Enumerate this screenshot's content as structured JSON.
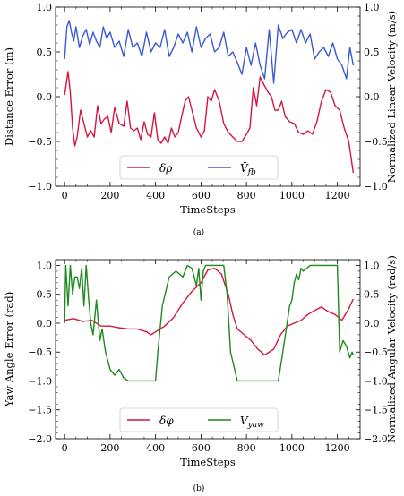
{
  "chart_data": [
    {
      "type": "line",
      "caption": "(a)",
      "xlabel": "TimeSteps",
      "ylabel_left": "Distance Error (m)",
      "ylabel_right": "Normalized Linear Velocity (m/s)",
      "xlim": [
        -40,
        1300
      ],
      "ylim": [
        -1.0,
        1.0
      ],
      "xticks": [
        "0",
        "200",
        "400",
        "600",
        "800",
        "1000",
        "1200"
      ],
      "yticks_left": [
        "−1.0",
        "−0.5",
        "0.0",
        "0.5",
        "1.0"
      ],
      "yticks_right": [
        "−1.0",
        "−0.5",
        "0.0",
        "0.5",
        "1.0"
      ],
      "legend_position": "lower-center",
      "series": [
        {
          "name": "δρ",
          "color": "#d6163f",
          "x": [
            0,
            15,
            25,
            35,
            45,
            55,
            70,
            85,
            100,
            115,
            130,
            145,
            160,
            175,
            190,
            205,
            220,
            240,
            260,
            275,
            290,
            305,
            320,
            335,
            350,
            365,
            380,
            395,
            410,
            425,
            440,
            455,
            470,
            485,
            500,
            515,
            530,
            545,
            560,
            580,
            600,
            615,
            630,
            645,
            660,
            680,
            700,
            720,
            740,
            760,
            780,
            800,
            815,
            830,
            845,
            860,
            880,
            895,
            910,
            925,
            940,
            955,
            970,
            990,
            1010,
            1030,
            1050,
            1070,
            1090,
            1110,
            1130,
            1150,
            1170,
            1190,
            1210,
            1230,
            1250,
            1270
          ],
          "y": [
            0.02,
            0.28,
            0.05,
            -0.35,
            -0.55,
            -0.45,
            -0.15,
            -0.3,
            -0.45,
            -0.38,
            -0.45,
            -0.1,
            -0.3,
            -0.25,
            -0.22,
            -0.4,
            -0.12,
            -0.3,
            -0.33,
            -0.05,
            -0.35,
            -0.38,
            -0.35,
            -0.48,
            -0.28,
            -0.42,
            -0.45,
            -0.18,
            -0.48,
            -0.52,
            -0.45,
            -0.52,
            -0.35,
            -0.45,
            -0.4,
            -0.22,
            -0.05,
            0.0,
            -0.15,
            -0.35,
            -0.45,
            -0.38,
            0.0,
            -0.05,
            0.08,
            -0.05,
            -0.3,
            -0.4,
            -0.45,
            -0.5,
            -0.5,
            -0.42,
            -0.35,
            0.1,
            -0.1,
            0.22,
            0.12,
            0.05,
            0.0,
            -0.15,
            -0.15,
            -0.05,
            -0.22,
            -0.28,
            -0.3,
            -0.4,
            -0.42,
            -0.38,
            -0.42,
            -0.28,
            -0.05,
            0.08,
            0.05,
            -0.1,
            -0.15,
            -0.35,
            -0.5,
            -0.85
          ]
        },
        {
          "name": "V̄fb",
          "color": "#3a5bd0",
          "x": [
            0,
            10,
            20,
            30,
            40,
            50,
            65,
            80,
            95,
            110,
            125,
            140,
            155,
            170,
            185,
            200,
            220,
            240,
            260,
            280,
            300,
            320,
            340,
            360,
            380,
            400,
            420,
            440,
            460,
            480,
            500,
            520,
            540,
            560,
            580,
            600,
            620,
            640,
            660,
            680,
            700,
            720,
            740,
            760,
            780,
            800,
            820,
            840,
            860,
            880,
            900,
            920,
            940,
            960,
            980,
            1000,
            1020,
            1040,
            1060,
            1080,
            1100,
            1120,
            1140,
            1160,
            1180,
            1200,
            1220,
            1240,
            1255,
            1270
          ],
          "y": [
            0.42,
            0.78,
            0.85,
            0.72,
            0.62,
            0.78,
            0.55,
            0.68,
            0.75,
            0.58,
            0.72,
            0.62,
            0.55,
            0.78,
            0.65,
            0.72,
            0.55,
            0.62,
            0.45,
            0.75,
            0.55,
            0.6,
            0.45,
            0.72,
            0.5,
            0.6,
            0.55,
            0.75,
            0.45,
            0.55,
            0.7,
            0.6,
            0.72,
            0.5,
            0.78,
            0.55,
            0.65,
            0.7,
            0.5,
            0.55,
            0.72,
            0.45,
            0.5,
            0.38,
            0.25,
            0.55,
            0.35,
            0.6,
            0.35,
            0.2,
            0.75,
            0.15,
            0.8,
            0.65,
            0.72,
            0.75,
            0.6,
            0.75,
            0.6,
            0.7,
            0.42,
            0.5,
            0.55,
            0.45,
            0.6,
            0.42,
            0.35,
            0.2,
            0.55,
            0.35
          ]
        }
      ]
    },
    {
      "type": "line",
      "caption": "(b)",
      "xlabel": "TimeSteps",
      "ylabel_left": "Yaw Angle Error (rad)",
      "ylabel_right": "Normalized Angular Velocity (rad/s)",
      "xlim": [
        -40,
        1300
      ],
      "ylim": [
        -2.0,
        1.1
      ],
      "xticks": [
        "0",
        "200",
        "400",
        "600",
        "800",
        "1000",
        "1200"
      ],
      "yticks_left": [
        "−2.0",
        "−1.5",
        "−1.0",
        "−0.5",
        "0.0",
        "0.5",
        "1.0"
      ],
      "yticks_right": [
        "−2.0",
        "−1.5",
        "−1.0",
        "−0.5",
        "0.0",
        "0.5",
        "1.0"
      ],
      "legend_position": "lower-center",
      "series": [
        {
          "name": "δφ",
          "color": "#d6163f",
          "x": [
            0,
            40,
            80,
            120,
            160,
            200,
            240,
            280,
            320,
            360,
            380,
            400,
            440,
            480,
            520,
            560,
            600,
            630,
            660,
            690,
            720,
            740,
            760,
            790,
            820,
            850,
            880,
            900,
            920,
            950,
            980,
            1010,
            1040,
            1070,
            1100,
            1130,
            1160,
            1190,
            1220,
            1250,
            1270
          ],
          "y": [
            0.05,
            0.08,
            0.03,
            0.05,
            -0.05,
            -0.05,
            -0.08,
            -0.1,
            -0.1,
            -0.15,
            -0.2,
            -0.15,
            -0.05,
            0.1,
            0.35,
            0.55,
            0.7,
            0.92,
            0.95,
            0.85,
            0.5,
            0.15,
            -0.1,
            -0.2,
            -0.3,
            -0.45,
            -0.55,
            -0.5,
            -0.45,
            -0.2,
            -0.05,
            0.0,
            0.05,
            0.15,
            0.22,
            0.28,
            0.2,
            0.15,
            0.05,
            0.25,
            0.42
          ]
        },
        {
          "name": "V̄yaw",
          "color": "#1e8a1e",
          "x": [
            0,
            5,
            15,
            25,
            35,
            45,
            55,
            65,
            75,
            85,
            95,
            105,
            115,
            125,
            140,
            155,
            165,
            180,
            200,
            220,
            240,
            260,
            280,
            320,
            360,
            400,
            410,
            430,
            460,
            490,
            520,
            540,
            560,
            580,
            590,
            600,
            610,
            620,
            700,
            715,
            730,
            760,
            800,
            850,
            900,
            940,
            960,
            975,
            990,
            1000,
            1010,
            1020,
            1030,
            1040,
            1050,
            1080,
            1120,
            1160,
            1200,
            1210,
            1225,
            1240,
            1255,
            1265,
            1270
          ],
          "y": [
            0.0,
            1.0,
            0.3,
            1.0,
            0.5,
            0.8,
            0.8,
            0.6,
            0.95,
            0.3,
            1.0,
            0.45,
            0.0,
            -0.2,
            0.4,
            -0.3,
            -0.1,
            -0.5,
            -0.8,
            -0.9,
            -0.8,
            -0.95,
            -1.0,
            -1.0,
            -1.0,
            -1.0,
            -0.5,
            0.3,
            0.8,
            0.9,
            0.8,
            1.0,
            0.95,
            0.65,
            0.95,
            0.4,
            0.9,
            1.0,
            1.0,
            0.5,
            -0.5,
            -1.0,
            -1.0,
            -1.0,
            -1.0,
            -1.0,
            -0.5,
            -0.1,
            0.3,
            0.4,
            0.7,
            0.85,
            0.75,
            0.95,
            0.9,
            1.0,
            1.0,
            1.0,
            1.0,
            -0.5,
            -0.3,
            -0.4,
            -0.6,
            -0.5,
            -0.55
          ]
        }
      ]
    }
  ]
}
